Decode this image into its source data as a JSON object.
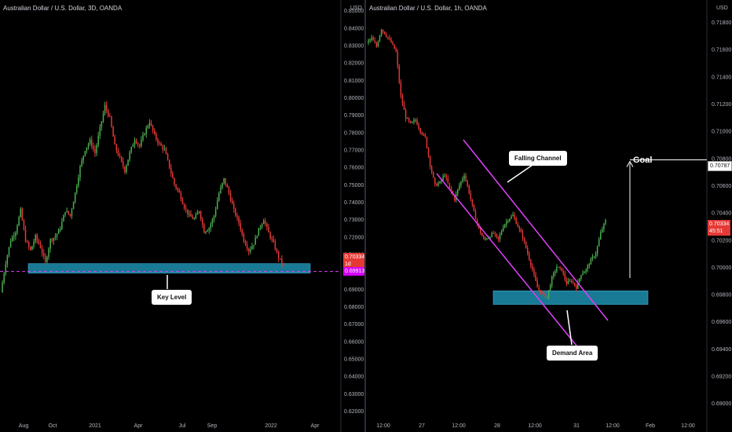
{
  "left": {
    "title": "Australian Dollar / U.S. Dollar, 3D, OANDA",
    "currency": "USD",
    "yticks": [
      "0.85000",
      "0.84000",
      "0.83000",
      "0.82000",
      "0.81000",
      "0.80000",
      "0.79000",
      "0.78000",
      "0.77000",
      "0.76000",
      "0.75000",
      "0.74000",
      "0.73000",
      "0.72000",
      "0.71000",
      "0.70000",
      "0.69000",
      "0.68000",
      "0.67000",
      "0.66000",
      "0.65000",
      "0.64000",
      "0.63000",
      "0.62000"
    ],
    "xticks": [
      "Aug",
      "Oct",
      "2021",
      "Apr",
      "Jul",
      "Sep",
      "2022",
      "Apr"
    ],
    "price_tag": "0.70334",
    "countdown": "1d 02:51",
    "level_tag": "0.69913",
    "callout": "Key Level"
  },
  "right": {
    "title": "Australian Dollar / U.S. Dollar, 1h, OANDA",
    "currency": "USD",
    "yticks": [
      "0.71800",
      "0.71600",
      "0.71400",
      "0.71200",
      "0.71000",
      "0.70800",
      "0.70600",
      "0.70400",
      "0.70200",
      "0.70000",
      "0.69800",
      "0.69600",
      "0.69400",
      "0.69200",
      "0.69000"
    ],
    "xticks": [
      "12:00",
      "27",
      "12:00",
      "28",
      "12:00",
      "31",
      "12:00",
      "Feb",
      "12:00"
    ],
    "price_tag": "0.70334",
    "countdown": "45:51",
    "goal_tag": "0.70787",
    "callout_channel": "Falling Channel",
    "callout_demand": "Demand Area",
    "goal_label": "Goal"
  },
  "colors": {
    "up": "#26a69a",
    "down": "#ef5350",
    "bull": "#4caf50",
    "bear": "#e53935",
    "zone": "#1e90b0",
    "channel": "#e040fb",
    "level": "#e040fb",
    "goal": "#ffffff"
  },
  "chart_data": [
    {
      "type": "candlestick",
      "title": "Australian Dollar / U.S. Dollar, 3D, OANDA",
      "ylim": [
        0.615,
        0.855
      ],
      "x_range": [
        "Jul 2020",
        "Apr 2022"
      ],
      "close_path": [
        0.688,
        0.705,
        0.718,
        0.723,
        0.735,
        0.718,
        0.712,
        0.72,
        0.714,
        0.705,
        0.718,
        0.72,
        0.725,
        0.735,
        0.732,
        0.745,
        0.76,
        0.77,
        0.775,
        0.768,
        0.782,
        0.795,
        0.788,
        0.772,
        0.765,
        0.758,
        0.768,
        0.776,
        0.772,
        0.78,
        0.786,
        0.778,
        0.773,
        0.77,
        0.76,
        0.75,
        0.745,
        0.737,
        0.732,
        0.73,
        0.735,
        0.723,
        0.725,
        0.732,
        0.745,
        0.753,
        0.745,
        0.735,
        0.728,
        0.718,
        0.712,
        0.716,
        0.724,
        0.73,
        0.722,
        0.716,
        0.708,
        0.703
      ],
      "annotations": {
        "key_level": 0.7,
        "zone": [
          0.699,
          0.7045
        ]
      }
    },
    {
      "type": "candlestick",
      "title": "Australian Dollar / U.S. Dollar, 1h, OANDA",
      "ylim": [
        0.6888,
        0.7195
      ],
      "close_path": [
        0.7165,
        0.7168,
        0.7162,
        0.7175,
        0.717,
        0.7165,
        0.7158,
        0.7125,
        0.711,
        0.7105,
        0.7108,
        0.71,
        0.7095,
        0.7075,
        0.706,
        0.7062,
        0.7068,
        0.7058,
        0.705,
        0.706,
        0.7068,
        0.7055,
        0.704,
        0.7028,
        0.702,
        0.7022,
        0.7025,
        0.702,
        0.703,
        0.7035,
        0.7038,
        0.703,
        0.7022,
        0.701,
        0.6998,
        0.6985,
        0.698,
        0.6978,
        0.6992,
        0.7,
        0.6998,
        0.6988,
        0.699,
        0.6985,
        0.6995,
        0.6998,
        0.7005,
        0.701,
        0.7025,
        0.7034
      ],
      "annotations": {
        "goal": 0.70787,
        "demand_zone": [
          0.69725,
          0.69825
        ]
      }
    }
  ]
}
